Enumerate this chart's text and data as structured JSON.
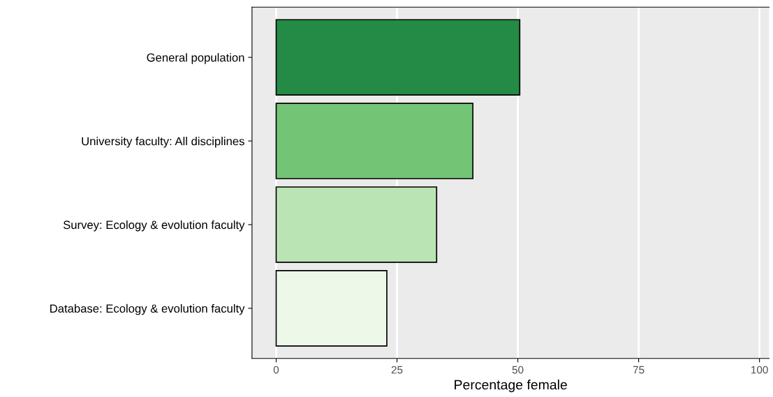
{
  "chart_data": {
    "type": "bar",
    "orientation": "horizontal",
    "xlabel": "Percentage female",
    "categories": [
      "General population",
      "University faculty: All disciplines",
      "Survey: Ecology & evolution faculty",
      "Database: Ecology & evolution faculty"
    ],
    "values": [
      50.4,
      40.7,
      33.2,
      22.9
    ],
    "colors": [
      "#238b45",
      "#74c476",
      "#bae4b3",
      "#edf8e9"
    ],
    "xlim": [
      -5,
      102
    ],
    "xticks": [
      0,
      25,
      50,
      75,
      100
    ],
    "grid": "x"
  }
}
